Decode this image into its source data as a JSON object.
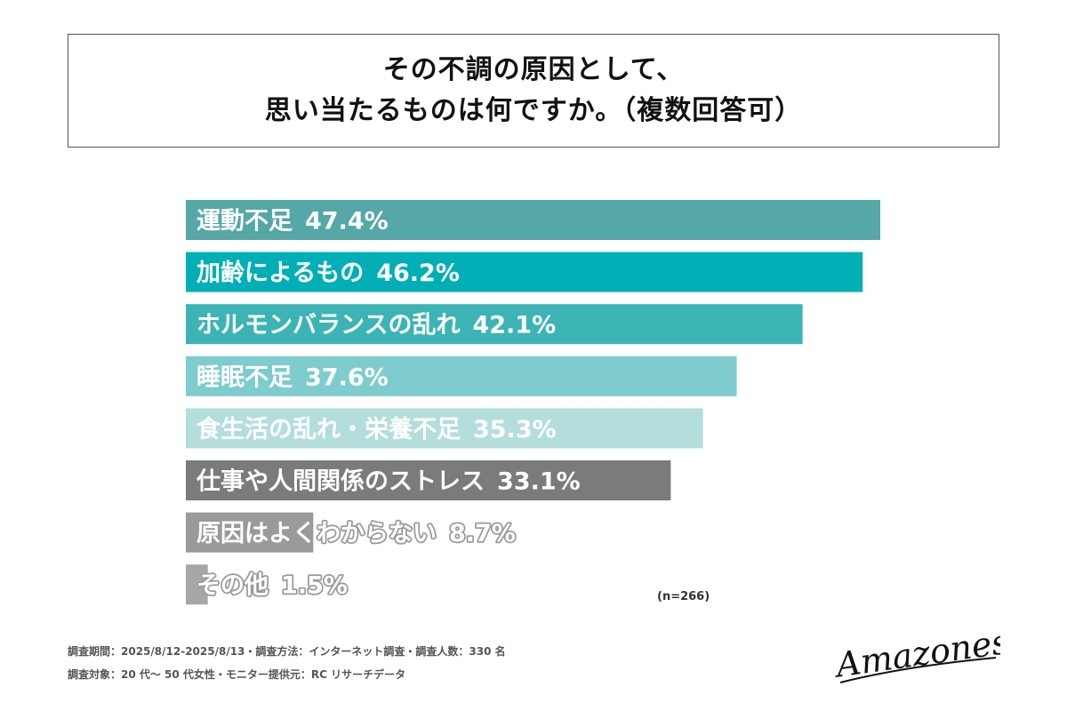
{
  "title": {
    "line1": "その不調の原因として、",
    "line2": "思い当たるものは何ですか。（複数回答可）"
  },
  "chart_data": {
    "type": "bar",
    "orientation": "horizontal",
    "categories": [
      "運動不足",
      "加齢によるもの",
      "ホルモンバランスの乱れ",
      "睡眠不足",
      "食生活の乱れ・栄養不足",
      "仕事や人間関係のストレス",
      "原因はよくわからない",
      "その他"
    ],
    "values": [
      47.4,
      46.2,
      42.1,
      37.6,
      35.3,
      33.1,
      8.7,
      1.5
    ],
    "value_labels": [
      "47.4%",
      "46.2%",
      "42.1%",
      "37.6%",
      "35.3%",
      "33.1%",
      "8.7%",
      "1.5%"
    ],
    "colors": [
      "#56a7a7",
      "#00afb5",
      "#3cb4b6",
      "#7ecccd",
      "#b3dedc",
      "#7b7b7d",
      "#9a9a9a",
      "#a7a7a7"
    ],
    "unit": "%",
    "xlim": [
      0,
      50
    ],
    "grid": false,
    "legend": "none",
    "sample_note": "(n=266)"
  },
  "footer": {
    "line1": "調査期間：2025/8/12-2025/8/13・調査方法：インターネット調査・調査人数：330 名",
    "line2": "調査対象：20 代〜 50 代女性・モニター提供元：RC リサーチデータ"
  },
  "logo": {
    "text": "Amazones"
  }
}
